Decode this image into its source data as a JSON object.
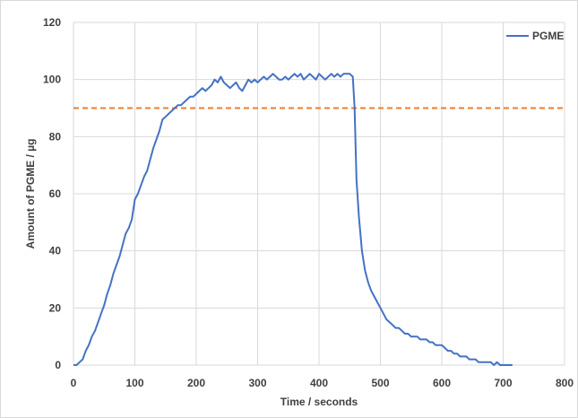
{
  "chart_data": {
    "type": "line",
    "xlabel": "Time / seconds",
    "ylabel": "Amount of PGME / µg",
    "xlim": [
      0,
      800
    ],
    "ylim": [
      0,
      120
    ],
    "xticks": [
      0,
      100,
      200,
      300,
      400,
      500,
      600,
      700,
      800
    ],
    "yticks": [
      0,
      20,
      40,
      60,
      80,
      100,
      120
    ],
    "grid": "vertical and horizontal",
    "legend_position": "top-right",
    "series": [
      {
        "name": "PGME",
        "color": "#4472c4",
        "points": [
          [
            0,
            0
          ],
          [
            5,
            0
          ],
          [
            10,
            1
          ],
          [
            15,
            2
          ],
          [
            20,
            5
          ],
          [
            25,
            7
          ],
          [
            30,
            10
          ],
          [
            35,
            12
          ],
          [
            40,
            15
          ],
          [
            45,
            18
          ],
          [
            50,
            21
          ],
          [
            55,
            25
          ],
          [
            60,
            28
          ],
          [
            65,
            32
          ],
          [
            70,
            35
          ],
          [
            75,
            38
          ],
          [
            80,
            42
          ],
          [
            85,
            46
          ],
          [
            90,
            48
          ],
          [
            95,
            51
          ],
          [
            100,
            58
          ],
          [
            105,
            60
          ],
          [
            110,
            63
          ],
          [
            115,
            66
          ],
          [
            120,
            68
          ],
          [
            125,
            72
          ],
          [
            130,
            76
          ],
          [
            135,
            79
          ],
          [
            140,
            82
          ],
          [
            145,
            86
          ],
          [
            150,
            87
          ],
          [
            155,
            88
          ],
          [
            160,
            89
          ],
          [
            165,
            90
          ],
          [
            170,
            91
          ],
          [
            175,
            91
          ],
          [
            180,
            92
          ],
          [
            185,
            93
          ],
          [
            190,
            94
          ],
          [
            195,
            94
          ],
          [
            200,
            95
          ],
          [
            205,
            96
          ],
          [
            210,
            97
          ],
          [
            215,
            96
          ],
          [
            220,
            97
          ],
          [
            225,
            98
          ],
          [
            230,
            100
          ],
          [
            235,
            99
          ],
          [
            240,
            101
          ],
          [
            245,
            99
          ],
          [
            250,
            98
          ],
          [
            255,
            97
          ],
          [
            260,
            98
          ],
          [
            265,
            99
          ],
          [
            270,
            97
          ],
          [
            275,
            96
          ],
          [
            280,
            98
          ],
          [
            285,
            100
          ],
          [
            290,
            99
          ],
          [
            295,
            100
          ],
          [
            300,
            99
          ],
          [
            305,
            100
          ],
          [
            310,
            101
          ],
          [
            315,
            100
          ],
          [
            320,
            101
          ],
          [
            325,
            102
          ],
          [
            330,
            101
          ],
          [
            335,
            100
          ],
          [
            340,
            100
          ],
          [
            345,
            101
          ],
          [
            350,
            100
          ],
          [
            355,
            101
          ],
          [
            360,
            102
          ],
          [
            365,
            101
          ],
          [
            370,
            102
          ],
          [
            375,
            100
          ],
          [
            380,
            101
          ],
          [
            385,
            102
          ],
          [
            390,
            101
          ],
          [
            395,
            100
          ],
          [
            400,
            102
          ],
          [
            405,
            101
          ],
          [
            410,
            100
          ],
          [
            415,
            101
          ],
          [
            420,
            102
          ],
          [
            425,
            101
          ],
          [
            430,
            102
          ],
          [
            435,
            101
          ],
          [
            440,
            102
          ],
          [
            445,
            102
          ],
          [
            450,
            102
          ],
          [
            455,
            101
          ],
          [
            458,
            90
          ],
          [
            461,
            65
          ],
          [
            465,
            52
          ],
          [
            470,
            40
          ],
          [
            475,
            33
          ],
          [
            480,
            29
          ],
          [
            485,
            26
          ],
          [
            490,
            24
          ],
          [
            495,
            22
          ],
          [
            500,
            20
          ],
          [
            505,
            18
          ],
          [
            510,
            16
          ],
          [
            515,
            15
          ],
          [
            520,
            14
          ],
          [
            525,
            13
          ],
          [
            530,
            13
          ],
          [
            535,
            12
          ],
          [
            540,
            11
          ],
          [
            545,
            11
          ],
          [
            550,
            10
          ],
          [
            555,
            10
          ],
          [
            560,
            10
          ],
          [
            565,
            9
          ],
          [
            570,
            9
          ],
          [
            575,
            9
          ],
          [
            580,
            8
          ],
          [
            585,
            8
          ],
          [
            590,
            7
          ],
          [
            595,
            7
          ],
          [
            600,
            7
          ],
          [
            605,
            6
          ],
          [
            610,
            5
          ],
          [
            615,
            5
          ],
          [
            620,
            4
          ],
          [
            625,
            4
          ],
          [
            630,
            3
          ],
          [
            635,
            3
          ],
          [
            640,
            3
          ],
          [
            645,
            2
          ],
          [
            650,
            2
          ],
          [
            655,
            2
          ],
          [
            660,
            1
          ],
          [
            665,
            1
          ],
          [
            670,
            1
          ],
          [
            675,
            1
          ],
          [
            680,
            1
          ],
          [
            685,
            0
          ],
          [
            690,
            1
          ],
          [
            695,
            0
          ],
          [
            700,
            0
          ],
          [
            705,
            0
          ],
          [
            710,
            0
          ],
          [
            715,
            0
          ]
        ]
      }
    ],
    "reference_line": {
      "y": 90,
      "color": "#ed7d31",
      "style": "dashed"
    }
  }
}
